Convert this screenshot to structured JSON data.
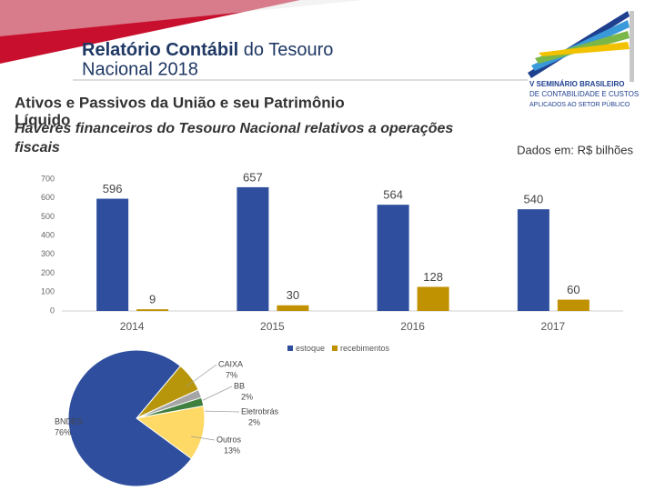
{
  "header": {
    "title": [
      "Relatório Contábil",
      "do Tesouro",
      "Nacional 2018"
    ],
    "logo": [
      "V SEMINÁRIO BRASILEIRO",
      "DE CONTABILIDADE E CUSTOS",
      "APLICADOS AO SETOR PÚBLICO"
    ],
    "subtitle": [
      "Ativos e Passivos da União e seu Patrimônio",
      "Líquido"
    ],
    "caption": [
      "Haveres financeiros do Tesouro Nacional relativos a operações",
      "fiscais"
    ],
    "unit_note": "Dados em: R$ bilhões"
  },
  "chart_data": [
    {
      "type": "bar",
      "categories": [
        "2014",
        "2015",
        "2016",
        "2017"
      ],
      "series": [
        {
          "name": "estoque",
          "color": "#2f4f9e",
          "values": [
            596,
            657,
            564,
            540
          ]
        },
        {
          "name": "recebimentos",
          "color": "#c09100",
          "values": [
            9,
            30,
            128,
            60
          ]
        }
      ],
      "ylim": [
        0,
        700
      ],
      "yticks": [
        0,
        100,
        200,
        300,
        400,
        500,
        600,
        700
      ],
      "grid": false,
      "legend": "bottom"
    },
    {
      "type": "pie",
      "categories": [
        "CAIXA",
        "BB",
        "Eletrobrás",
        "Outros",
        "BNDES"
      ],
      "values": [
        7,
        2,
        2,
        13,
        76
      ],
      "value_labels": [
        "7%",
        "2%",
        "2%",
        "13%",
        "76%"
      ],
      "colors": [
        "#b8960c",
        "#a5a5a5",
        "#3f7f3f",
        "#ffd966",
        "#2f4f9e"
      ]
    }
  ]
}
